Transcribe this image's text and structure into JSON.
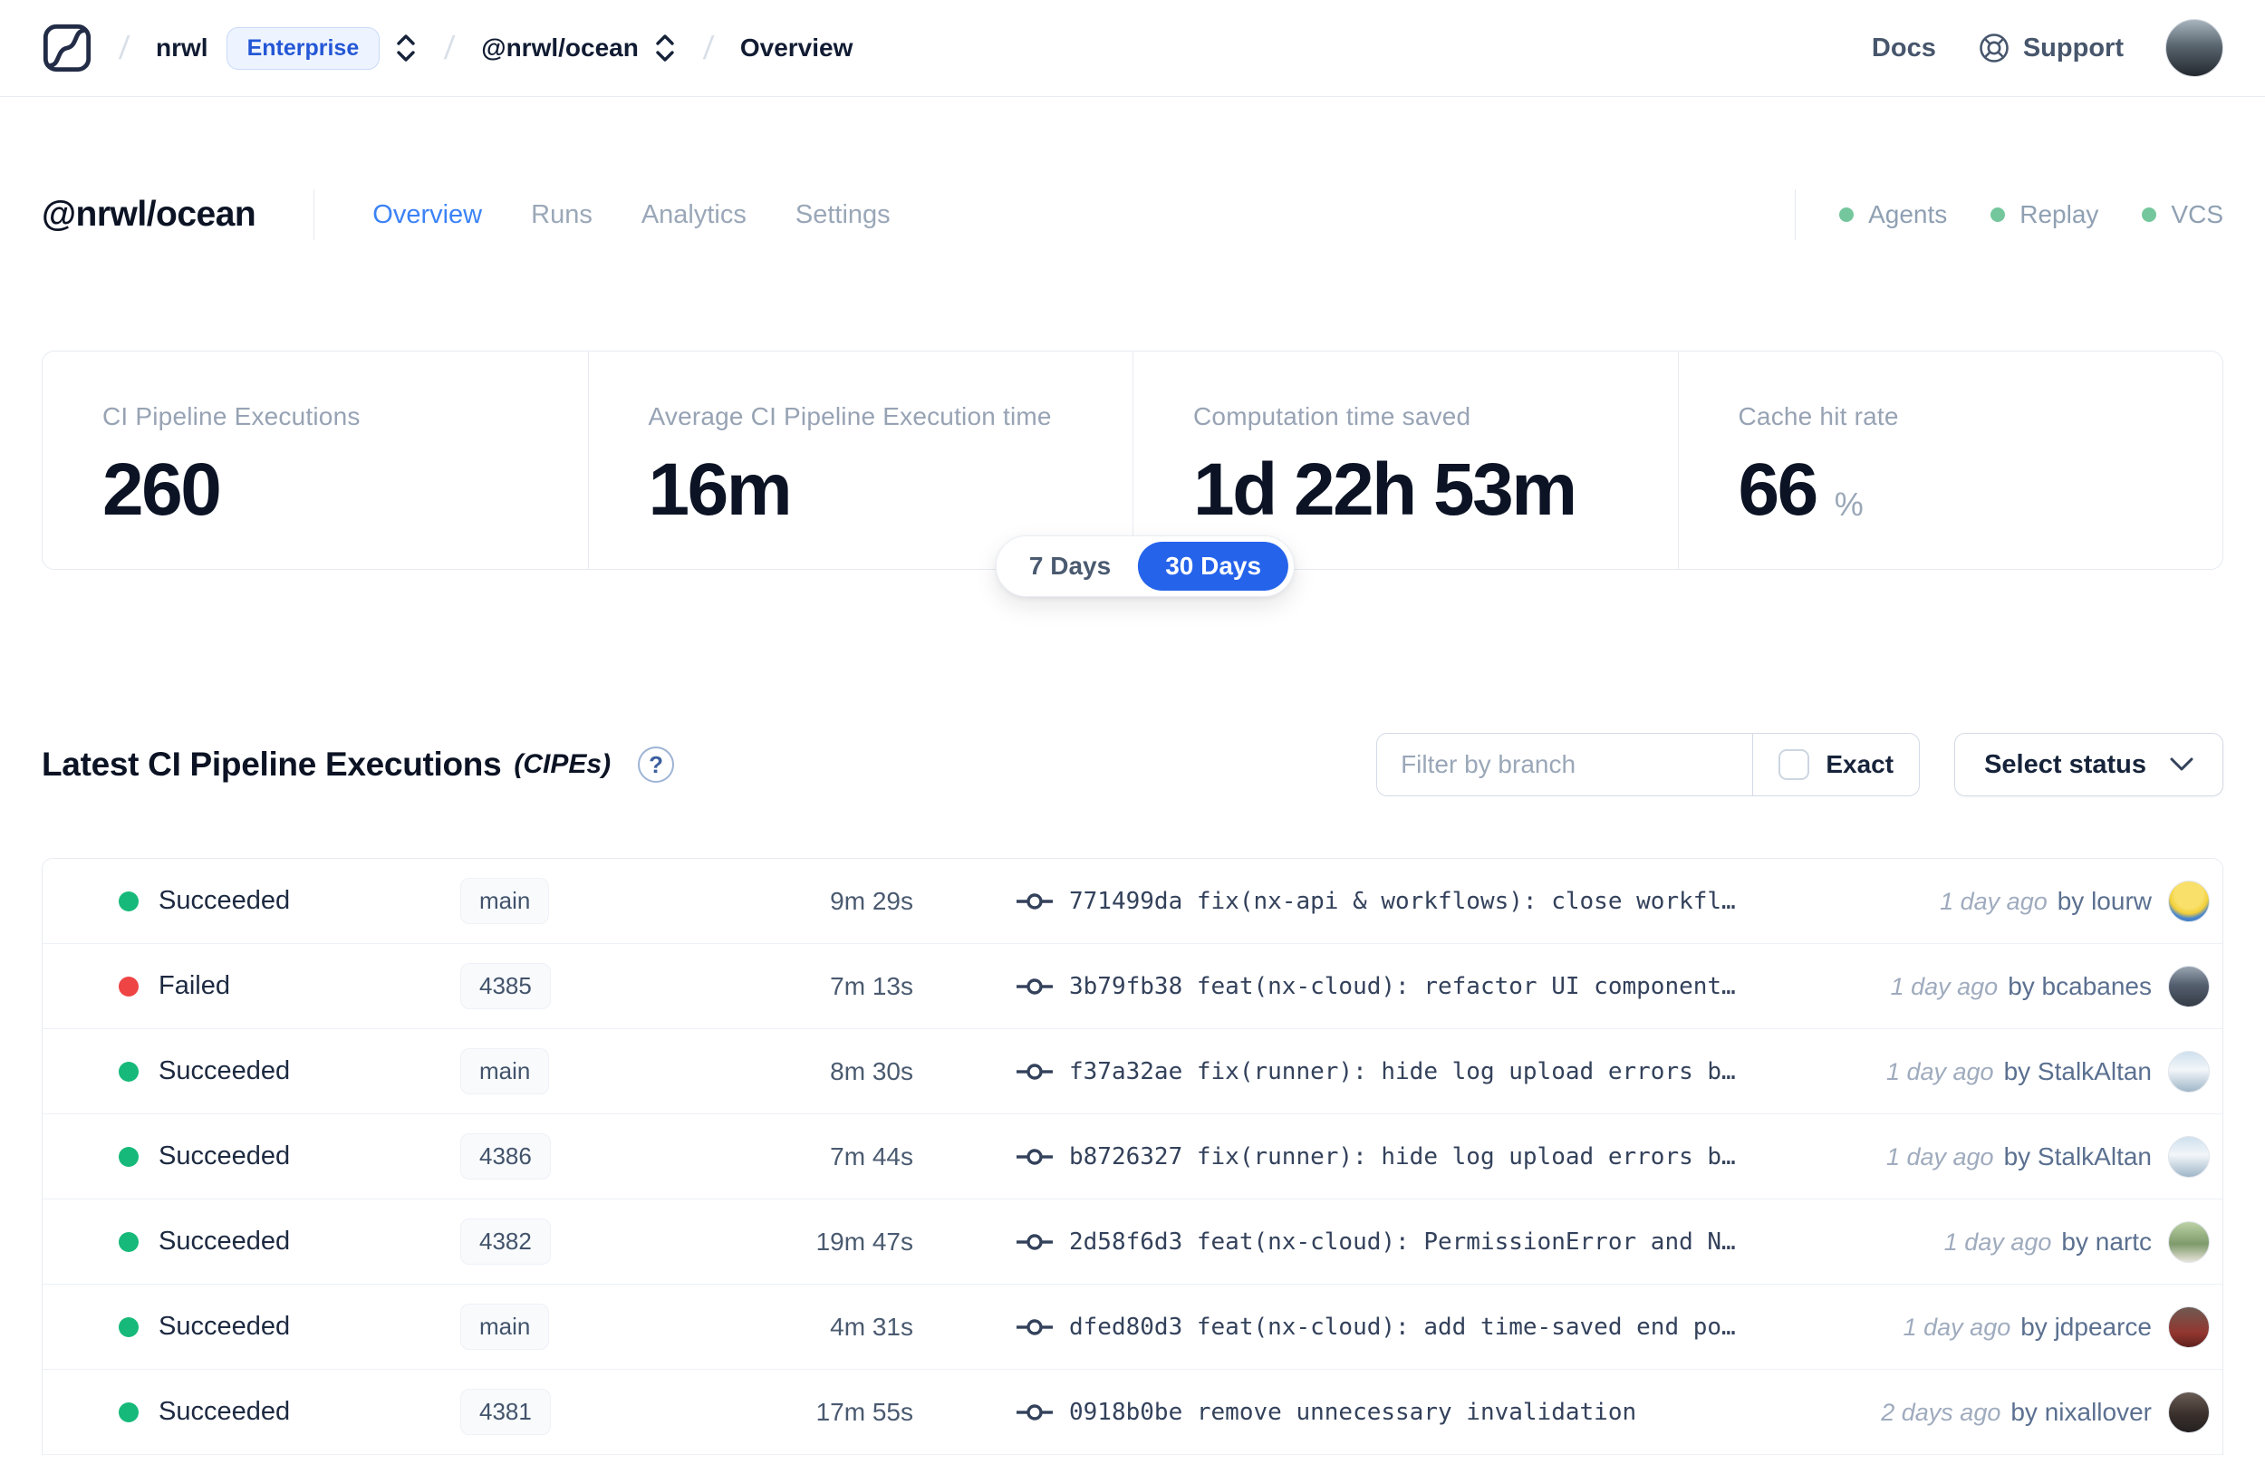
{
  "nav": {
    "breadcrumb": {
      "org": "nrwl",
      "org_badge": "Enterprise",
      "workspace": "@nrwl/ocean",
      "page": "Overview"
    },
    "links": {
      "docs": "Docs",
      "support": "Support"
    }
  },
  "workspace_header": {
    "title": "@nrwl/ocean",
    "tabs": [
      {
        "label": "Overview",
        "active": true
      },
      {
        "label": "Runs",
        "active": false
      },
      {
        "label": "Analytics",
        "active": false
      },
      {
        "label": "Settings",
        "active": false
      }
    ],
    "statuses": [
      {
        "label": "Agents"
      },
      {
        "label": "Replay"
      },
      {
        "label": "VCS"
      }
    ]
  },
  "stats": {
    "cards": [
      {
        "label": "CI Pipeline Executions",
        "value": "260",
        "suffix": ""
      },
      {
        "label": "Average CI Pipeline Execution time",
        "value": "16m",
        "suffix": ""
      },
      {
        "label": "Computation time saved",
        "value": "1d 22h 53m",
        "suffix": ""
      },
      {
        "label": "Cache hit rate",
        "value": "66",
        "suffix": "%"
      }
    ],
    "range_toggle": {
      "options": [
        "7 Days",
        "30 Days"
      ],
      "selected": "30 Days"
    }
  },
  "executions": {
    "title": "Latest CI Pipeline Executions",
    "title_suffix": "(CIPEs)",
    "help_glyph": "?",
    "filter_placeholder": "Filter by branch",
    "exact_label": "Exact",
    "status_select_label": "Select status",
    "rows": [
      {
        "status": "Succeeded",
        "status_key": "succeeded",
        "branch": "main",
        "duration": "9m 29s",
        "commit": "771499da",
        "message": "fix(nx-api & workflows): close workfl…",
        "time": "1 day ago",
        "author": "by lourw",
        "avatar": "lourw"
      },
      {
        "status": "Failed",
        "status_key": "failed",
        "branch": "4385",
        "duration": "7m 13s",
        "commit": "3b79fb38",
        "message": "feat(nx-cloud): refactor UI component…",
        "time": "1 day ago",
        "author": "by bcabanes",
        "avatar": "bcabanes"
      },
      {
        "status": "Succeeded",
        "status_key": "succeeded",
        "branch": "main",
        "duration": "8m 30s",
        "commit": "f37a32ae",
        "message": "fix(runner): hide log upload errors b…",
        "time": "1 day ago",
        "author": "by StalkAltan",
        "avatar": "stalkaltan"
      },
      {
        "status": "Succeeded",
        "status_key": "succeeded",
        "branch": "4386",
        "duration": "7m 44s",
        "commit": "b8726327",
        "message": "fix(runner): hide log upload errors b…",
        "time": "1 day ago",
        "author": "by StalkAltan",
        "avatar": "stalkaltan"
      },
      {
        "status": "Succeeded",
        "status_key": "succeeded",
        "branch": "4382",
        "duration": "19m 47s",
        "commit": "2d58f6d3",
        "message": "feat(nx-cloud): PermissionError and N…",
        "time": "1 day ago",
        "author": "by nartc",
        "avatar": "nartc"
      },
      {
        "status": "Succeeded",
        "status_key": "succeeded",
        "branch": "main",
        "duration": "4m 31s",
        "commit": "dfed80d3",
        "message": "feat(nx-cloud): add time-saved end po…",
        "time": "1 day ago",
        "author": "by jdpearce",
        "avatar": "jdpearce"
      },
      {
        "status": "Succeeded",
        "status_key": "succeeded",
        "branch": "4381",
        "duration": "17m 55s",
        "commit": "0918b0be",
        "message": "remove unnecessary invalidation",
        "time": "2 days ago",
        "author": "by nixallover",
        "avatar": "nixallover"
      }
    ]
  },
  "colors": {
    "accent_blue": "#2563eb",
    "tab_active_blue": "#3b82f6",
    "enterprise_badge_blue": "#2457d6",
    "success_green": "#16b979",
    "failed_red": "#ee4444",
    "nav_status_green": "#74c79c"
  }
}
